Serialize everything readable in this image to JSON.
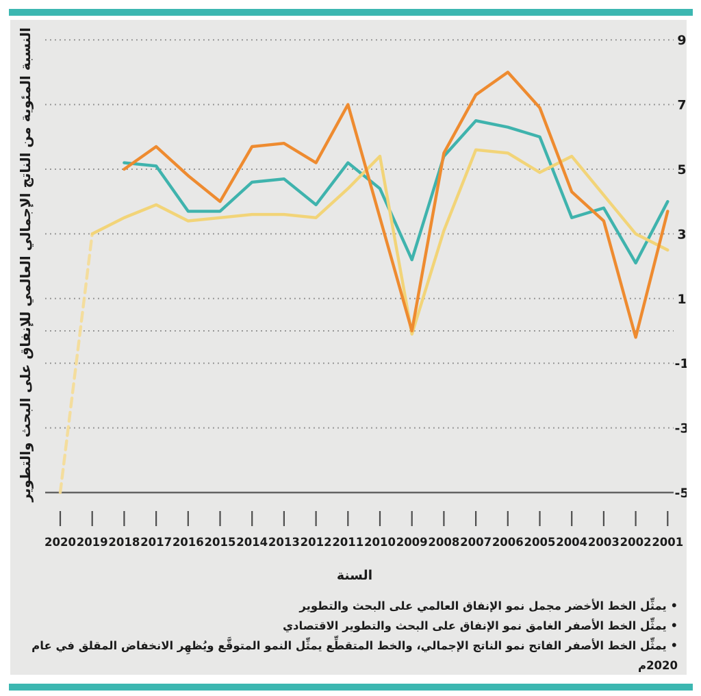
{
  "page": {
    "background": "#ffffff",
    "panel_background": "#e8e8e7",
    "accent_bar_color": "#3cb7b1"
  },
  "chart_data": {
    "type": "line",
    "title": "",
    "xlabel": "السنة",
    "ylabel": "النسبة المئوية من الناتج الإجمالي العالمي للإنفاق على البحث والتطوير",
    "x_years": [
      2020,
      2019,
      2018,
      2017,
      2016,
      2015,
      2014,
      2013,
      2012,
      2011,
      2010,
      2009,
      2008,
      2007,
      2006,
      2005,
      2004,
      2003,
      2002,
      2001
    ],
    "x_axis_reversed": true,
    "y_tick_labels": [
      9,
      7,
      5,
      3,
      1,
      -1,
      -3,
      -5
    ],
    "grid_values": [
      9,
      7,
      5,
      3,
      1,
      0,
      -1,
      -3
    ],
    "baseline_value": -5,
    "ylim": [
      -5,
      9.4
    ],
    "grid_style": "dotted horizontal",
    "colors": {
      "grid": "#8e8e8e",
      "axis": "#636363",
      "text": "#1b1b1b"
    },
    "series": [
      {
        "name": "projected-growth-dashed",
        "label_ar": "الخط المتقطع (النمو المتوقع)",
        "color": "#f5dc95",
        "dashed": true,
        "points": [
          [
            2020,
            -5.0
          ],
          [
            2019,
            3.0
          ]
        ]
      },
      {
        "name": "green-line-global-rnd-spending-growth",
        "label_ar": "الخط الأخضر",
        "color": "#3fb3ad",
        "dashed": false,
        "points": [
          [
            2018,
            5.2
          ],
          [
            2017,
            5.1
          ],
          [
            2016,
            3.7
          ],
          [
            2015,
            3.7
          ],
          [
            2014,
            4.6
          ],
          [
            2013,
            4.7
          ],
          [
            2012,
            3.9
          ],
          [
            2011,
            5.2
          ],
          [
            2010,
            4.4
          ],
          [
            2009,
            2.2
          ],
          [
            2008,
            5.4
          ],
          [
            2007,
            6.5
          ],
          [
            2006,
            6.3
          ],
          [
            2005,
            6.0
          ],
          [
            2004,
            3.5
          ],
          [
            2003,
            3.8
          ],
          [
            2002,
            2.1
          ],
          [
            2001,
            4.0
          ]
        ]
      },
      {
        "name": "light-yellow-line-gdp-growth",
        "label_ar": "الخط الأصفر الفاتح",
        "color": "#f2d478",
        "dashed": false,
        "points": [
          [
            2019,
            3.0
          ],
          [
            2018,
            3.5
          ],
          [
            2017,
            3.9
          ],
          [
            2016,
            3.4
          ],
          [
            2015,
            3.5
          ],
          [
            2014,
            3.6
          ],
          [
            2013,
            3.6
          ],
          [
            2012,
            3.5
          ],
          [
            2011,
            4.4
          ],
          [
            2010,
            5.4
          ],
          [
            2009,
            -0.1
          ],
          [
            2008,
            3.1
          ],
          [
            2007,
            5.6
          ],
          [
            2006,
            5.5
          ],
          [
            2005,
            4.9
          ],
          [
            2004,
            5.4
          ],
          [
            2003,
            4.2
          ],
          [
            2002,
            3.0
          ],
          [
            2001,
            2.5
          ]
        ]
      },
      {
        "name": "dark-yellow-line-economic-rnd-spending-growth",
        "label_ar": "الخط الأصفر الغامق",
        "color": "#ee8b30",
        "dashed": false,
        "points": [
          [
            2018,
            5.0
          ],
          [
            2017,
            5.7
          ],
          [
            2016,
            4.8
          ],
          [
            2015,
            4.0
          ],
          [
            2014,
            5.7
          ],
          [
            2013,
            5.8
          ],
          [
            2012,
            5.2
          ],
          [
            2011,
            7.0
          ],
          [
            2010,
            3.5
          ],
          [
            2009,
            0.0
          ],
          [
            2008,
            5.5
          ],
          [
            2007,
            7.3
          ],
          [
            2006,
            8.0
          ],
          [
            2005,
            6.9
          ],
          [
            2004,
            4.3
          ],
          [
            2003,
            3.4
          ],
          [
            2002,
            -0.2
          ],
          [
            2001,
            3.7
          ]
        ]
      }
    ]
  },
  "legend": {
    "bullets": [
      "• يمثِّل الخط الأخضر مجمل نمو الإنفاق العالمي على البحث والتطوير",
      "• يمثِّل الخط الأصفر الغامق نمو الإنفاق على البحث والتطوير الاقتصادي",
      "• يمثِّل الخط الأصفر الفاتح نمو الناتج الإجمالي، والخط المتقطِّع يمثِّل النمو المتوقَّع ويُظهِر الانخفاض المقلق في عام 2020م"
    ]
  }
}
